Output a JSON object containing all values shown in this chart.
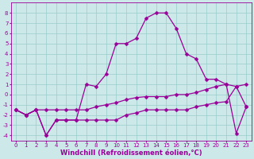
{
  "title": "",
  "xlabel": "Windchill (Refroidissement éolien,°C)",
  "ylabel": "",
  "bg_color": "#cce8e8",
  "grid_color": "#99cccc",
  "line_color": "#990099",
  "xlim": [
    -0.5,
    23.5
  ],
  "ylim": [
    -4.5,
    9
  ],
  "yticks": [
    -4,
    -3,
    -2,
    -1,
    0,
    1,
    2,
    3,
    4,
    5,
    6,
    7,
    8
  ],
  "xticks": [
    0,
    1,
    2,
    3,
    4,
    5,
    6,
    7,
    8,
    9,
    10,
    11,
    12,
    13,
    14,
    15,
    16,
    17,
    18,
    19,
    20,
    21,
    22,
    23
  ],
  "line1_x": [
    0,
    1,
    2,
    3,
    4,
    5,
    6,
    7,
    8,
    9,
    10,
    11,
    12,
    13,
    14,
    15,
    16,
    17,
    18,
    19,
    20,
    21,
    22,
    23
  ],
  "line1_y": [
    -1.5,
    -2.0,
    -1.5,
    -4.0,
    -2.5,
    -2.5,
    -2.5,
    -2.5,
    -2.5,
    -2.5,
    -2.5,
    -2.0,
    -1.8,
    -1.5,
    -1.5,
    -1.5,
    -1.5,
    -1.5,
    -1.2,
    -1.0,
    -0.8,
    -0.7,
    0.8,
    -1.2
  ],
  "line2_x": [
    0,
    1,
    2,
    3,
    4,
    5,
    6,
    7,
    8,
    9,
    10,
    11,
    12,
    13,
    14,
    15,
    16,
    17,
    18,
    19,
    20,
    21,
    22,
    23
  ],
  "line2_y": [
    -1.5,
    -2.0,
    -1.5,
    -1.5,
    -1.5,
    -1.5,
    -1.5,
    -1.5,
    -1.2,
    -1.0,
    -0.8,
    -0.5,
    -0.3,
    -0.2,
    -0.2,
    -0.2,
    -0.0,
    0.0,
    0.2,
    0.5,
    0.8,
    1.0,
    0.8,
    1.0
  ],
  "line3_x": [
    0,
    1,
    2,
    3,
    4,
    5,
    6,
    7,
    8,
    9,
    10,
    11,
    12,
    13,
    14,
    15,
    16,
    17,
    18,
    19,
    20,
    21,
    22,
    23
  ],
  "line3_y": [
    -1.5,
    -2.0,
    -1.5,
    -4.0,
    -2.5,
    -2.5,
    -2.5,
    1.0,
    0.8,
    2.0,
    5.0,
    5.0,
    5.5,
    7.5,
    8.0,
    8.0,
    6.5,
    4.0,
    3.5,
    1.5,
    1.5,
    1.0,
    -3.8,
    -1.2
  ],
  "marker": "D",
  "marker_size": 2.5,
  "linewidth": 0.9,
  "tick_fontsize": 5,
  "xlabel_fontsize": 6
}
